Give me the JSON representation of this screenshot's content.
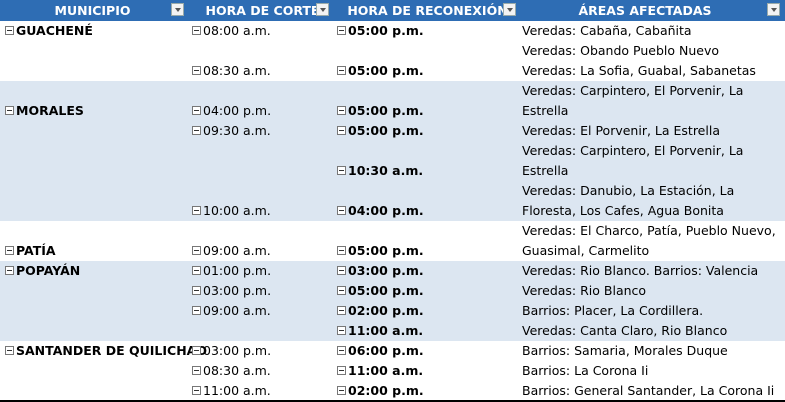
{
  "header": [
    "MUNICIPIO",
    "HORA DE CORTE",
    "HORA DE RECONEXIÓN",
    "ÁREAS AFECTADAS"
  ],
  "colors": {
    "header_bg": "#2e6db4",
    "band_bg": "#dce6f1"
  },
  "icons": {
    "filter": "dropdown-filter-icon",
    "collapse": "collapse-minus-icon"
  },
  "rows": [
    {
      "municipio": "GUACHENÉ",
      "corte": "08:00 a.m.",
      "reconexion": "05:00 p.m.",
      "area": "Veredas: Cabaña, Cabañita",
      "band": false
    },
    {
      "municipio": "",
      "corte": "",
      "reconexion": "",
      "area": "Veredas: Obando Pueblo Nuevo",
      "band": false
    },
    {
      "municipio": "",
      "corte": "08:30 a.m.",
      "reconexion": "05:00 p.m.",
      "area": "Veredas: La Sofia, Guabal, Sabanetas",
      "band": false
    },
    {
      "municipio": "",
      "corte": "",
      "reconexion": "",
      "area": "Veredas: Carpintero, El Porvenir, La",
      "band": true
    },
    {
      "municipio": "MORALES",
      "corte": "04:00 p.m.",
      "reconexion": "05:00 p.m.",
      "area": "Estrella",
      "band": true
    },
    {
      "municipio": "",
      "corte": "09:30 a.m.",
      "reconexion": "05:00 p.m.",
      "area": "Veredas: El Porvenir, La Estrella",
      "band": true
    },
    {
      "municipio": "",
      "corte": "",
      "reconexion": "",
      "area": "Veredas: Carpintero, El Porvenir, La",
      "band": true
    },
    {
      "municipio": "",
      "corte": "",
      "reconexion": "10:30 a.m.",
      "area": "Estrella",
      "band": true
    },
    {
      "municipio": "",
      "corte": "",
      "reconexion": "",
      "area": "Veredas: Danubio, La Estación, La",
      "band": true
    },
    {
      "municipio": "",
      "corte": "10:00 a.m.",
      "reconexion": "04:00 p.m.",
      "area": "Floresta, Los Cafes, Agua Bonita",
      "band": true
    },
    {
      "municipio": "",
      "corte": "",
      "reconexion": "",
      "area": "Veredas: El Charco, Patía, Pueblo Nuevo,",
      "band": false
    },
    {
      "municipio": "PATÍA",
      "corte": "09:00 a.m.",
      "reconexion": "05:00 p.m.",
      "area": "Guasimal, Carmelito",
      "band": false
    },
    {
      "municipio": "POPAYÁN",
      "corte": "01:00 p.m.",
      "reconexion": "03:00 p.m.",
      "area": "Veredas: Rio Blanco. Barrios: Valencia",
      "band": true
    },
    {
      "municipio": "",
      "corte": "03:00 p.m.",
      "reconexion": "05:00 p.m.",
      "area": "Veredas: Rio Blanco",
      "band": true
    },
    {
      "municipio": "",
      "corte": "09:00 a.m.",
      "reconexion": "02:00 p.m.",
      "area": "Barrios: Placer, La Cordillera.",
      "band": true
    },
    {
      "municipio": "",
      "corte": "",
      "reconexion": "11:00 a.m.",
      "area": "Veredas: Canta Claro, Rio Blanco",
      "band": true
    },
    {
      "municipio": "SANTANDER DE QUILICHAO",
      "corte": "03:00 p.m.",
      "reconexion": "06:00 p.m.",
      "area": "Barrios: Samaria, Morales Duque",
      "band": false
    },
    {
      "municipio": "",
      "corte": "08:30 a.m.",
      "reconexion": "11:00 a.m.",
      "area": "Barrios: La Corona Ii",
      "band": false
    },
    {
      "municipio": "",
      "corte": "11:00 a.m.",
      "reconexion": "02:00 p.m.",
      "area": "Barrios: General Santander, La Corona Ii",
      "band": false
    }
  ]
}
